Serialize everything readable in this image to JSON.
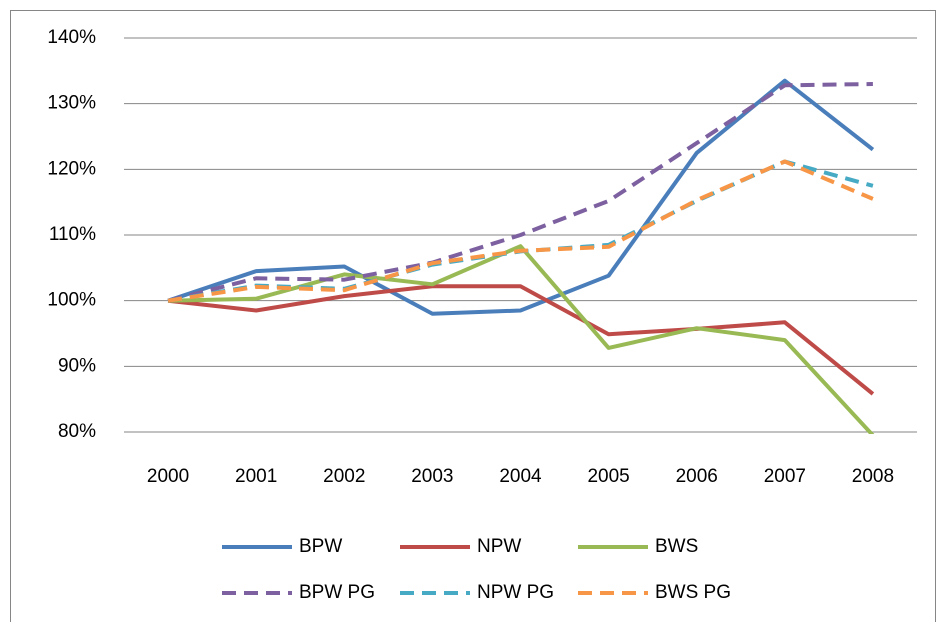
{
  "chart_data": {
    "type": "line",
    "categories": [
      "2000",
      "2001",
      "2002",
      "2003",
      "2004",
      "2005",
      "2006",
      "2007",
      "2008"
    ],
    "series": [
      {
        "name": "BPW",
        "color": "#4a7ebb",
        "dashed": false,
        "values": [
          100,
          104.5,
          105.2,
          98,
          98.5,
          103.8,
          122.5,
          133.5,
          123
        ]
      },
      {
        "name": "NPW",
        "color": "#be4b48",
        "dashed": false,
        "values": [
          100,
          98.5,
          100.7,
          102.2,
          102.2,
          94.9,
          95.7,
          96.7,
          85.8
        ]
      },
      {
        "name": "BWS",
        "color": "#98b954",
        "dashed": false,
        "values": [
          100,
          100.3,
          104,
          102.5,
          108.3,
          92.8,
          95.8,
          94,
          79.5
        ]
      },
      {
        "name": "BPW PG",
        "color": "#7d60a0",
        "dashed": true,
        "values": [
          100,
          103.4,
          103.2,
          105.8,
          110,
          115.2,
          124,
          132.8,
          133
        ]
      },
      {
        "name": "NPW PG",
        "color": "#46aac5",
        "dashed": true,
        "values": [
          100,
          102.3,
          101.8,
          105.5,
          107.5,
          108.5,
          115.2,
          121.2,
          117.5
        ]
      },
      {
        "name": "BWS PG",
        "color": "#f79646",
        "dashed": true,
        "values": [
          100,
          102.1,
          101.6,
          105.7,
          107.6,
          108.2,
          115.3,
          121.2,
          115.5
        ]
      }
    ],
    "ylim": [
      80,
      140
    ],
    "yticks": [
      {
        "value": 80,
        "label": "80%"
      },
      {
        "value": 90,
        "label": "90%"
      },
      {
        "value": 100,
        "label": "100%"
      },
      {
        "value": 110,
        "label": "110%"
      },
      {
        "value": 120,
        "label": "120%"
      },
      {
        "value": 130,
        "label": "130%"
      },
      {
        "value": 140,
        "label": "140%"
      }
    ],
    "grid": true,
    "legend": "bottom"
  }
}
